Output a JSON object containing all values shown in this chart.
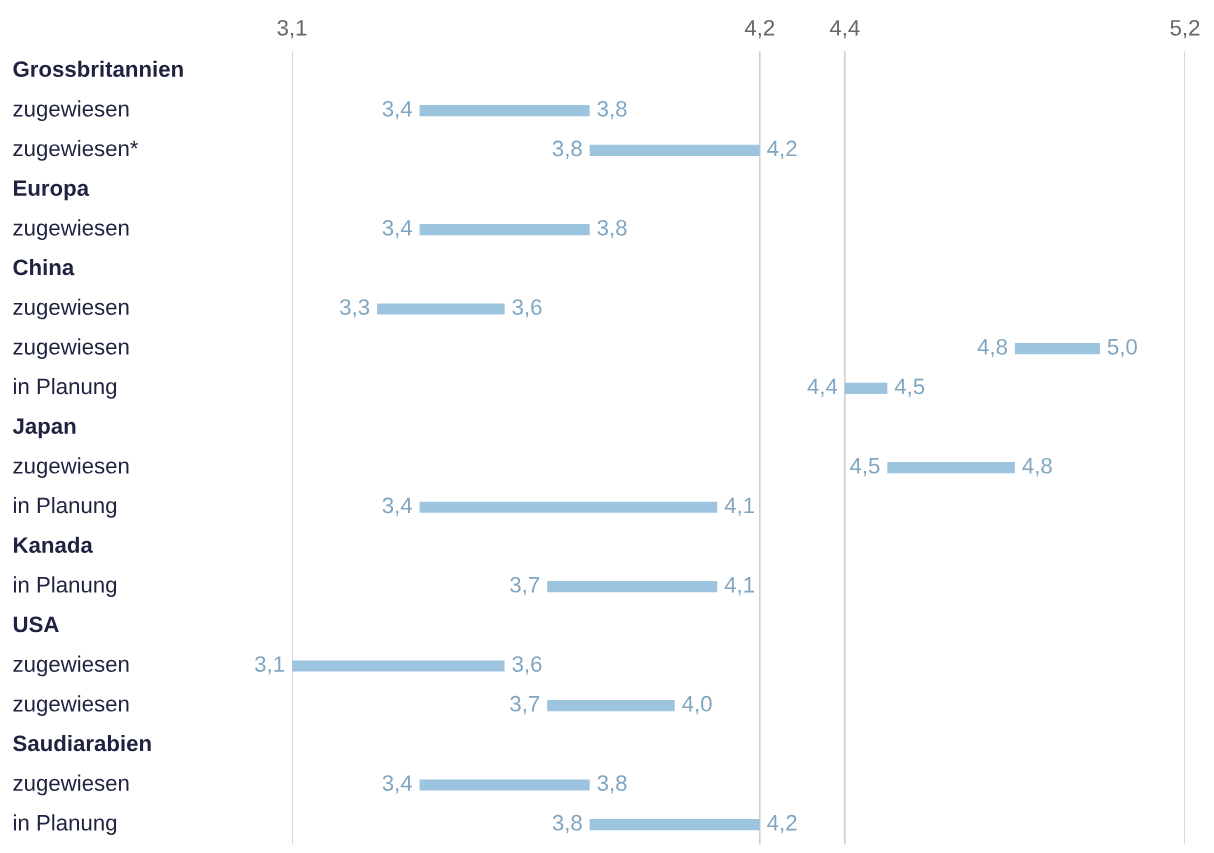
{
  "chart_data": {
    "type": "bar",
    "orientation": "horizontal",
    "categories": [
      "Grossbritannien",
      "zugewiesen",
      "zugewiesen*",
      "Europa",
      "zugewiesen",
      "China",
      "zugewiesen",
      "zugewiesen",
      "in Planung",
      "Japan",
      "zugewiesen",
      "in Planung",
      "Kanada",
      "in Planung",
      "USA",
      "zugewiesen",
      "zugewiesen",
      "Saudiarabien",
      "zugewiesen",
      "in Planung"
    ],
    "base": [
      null,
      3.4,
      3.8,
      null,
      3.4,
      null,
      3.3,
      4.8,
      4.4,
      null,
      4.5,
      3.4,
      null,
      3.7,
      null,
      3.1,
      3.7,
      null,
      3.4,
      3.8
    ],
    "values": [
      null,
      0.4,
      0.4,
      null,
      0.4,
      null,
      0.3,
      0.2,
      0.1,
      null,
      0.3,
      0.7,
      null,
      0.4,
      null,
      0.5,
      0.3,
      null,
      0.4,
      0.4
    ],
    "color": "#9cc4df",
    "annotations": [
      "3,4",
      "3,8",
      "3,8",
      "4,2",
      "3,4",
      "3,8",
      "3,3",
      "3,6",
      "4,8",
      "5,0",
      "4,4",
      "4,5",
      "4,5",
      "4,8",
      "3,4",
      "4,1",
      "3,7",
      "4,1",
      "3,1",
      "3,6",
      "3,7",
      "4,0",
      "3,4",
      "3,8",
      "3,8",
      "4,2"
    ],
    "xlim": [
      3.1,
      5.2
    ],
    "xticks": [
      {
        "value": 3.1,
        "label": "3,1"
      },
      {
        "value": 4.2,
        "label": "4,2"
      },
      {
        "value": 4.4,
        "label": "4,4"
      },
      {
        "value": 5.2,
        "label": "5,2"
      }
    ],
    "grid": "x"
  }
}
